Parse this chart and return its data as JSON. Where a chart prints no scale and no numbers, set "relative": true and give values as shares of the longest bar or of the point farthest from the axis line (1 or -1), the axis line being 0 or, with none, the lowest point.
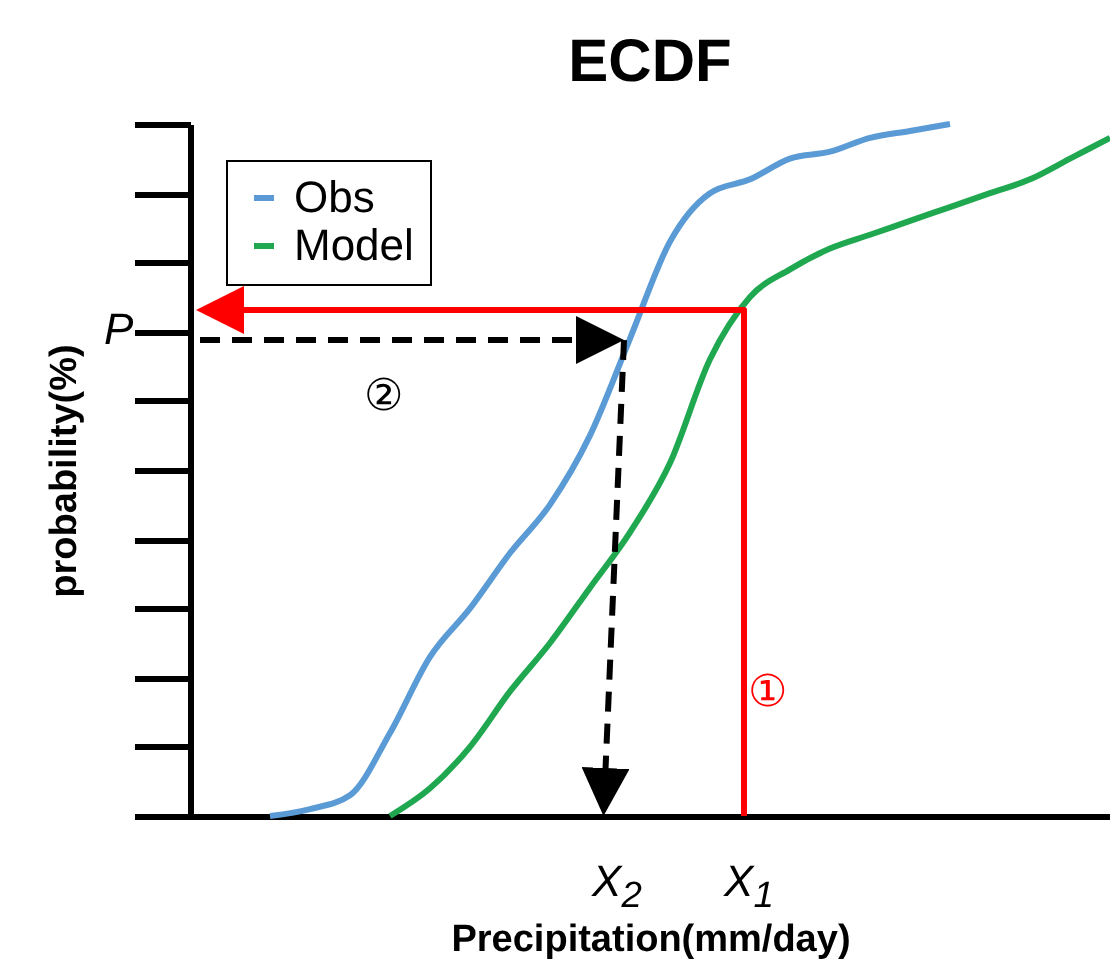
{
  "chart_data": {
    "type": "line",
    "title": "ECDF",
    "xlabel": "Precipitation(mm/day)",
    "ylabel": "probability(%)",
    "relative": true,
    "legend": "top left",
    "categories": [
      null,
      null,
      null,
      null,
      null,
      null,
      null,
      null,
      null,
      null,
      null,
      null,
      null,
      null,
      null,
      null,
      null,
      null,
      null,
      null,
      null,
      null,
      null,
      null
    ],
    "series": [
      {
        "name": "Obs",
        "color": "#5b9bd5",
        "values": [
          null,
          null,
          0,
          0.01,
          0.03,
          0.12,
          0.23,
          0.3,
          0.38,
          0.45,
          0.55,
          0.69,
          0.83,
          0.9,
          0.92,
          0.95,
          0.96,
          0.98,
          0.99,
          1,
          null,
          null,
          null,
          null
        ]
      },
      {
        "name": "Model",
        "color": "#1fa84f",
        "values": [
          null,
          null,
          null,
          null,
          null,
          0,
          0.04,
          0.1,
          0.18,
          0.25,
          0.33,
          0.41,
          0.51,
          0.66,
          0.75,
          0.79,
          0.82,
          0.84,
          0.86,
          0.88,
          0.9,
          0.92,
          0.95,
          0.98
        ]
      }
    ],
    "annotations": [
      "P",
      "X$_{2}$",
      "X$_{1}$",
      "②",
      "①"
    ]
  }
}
